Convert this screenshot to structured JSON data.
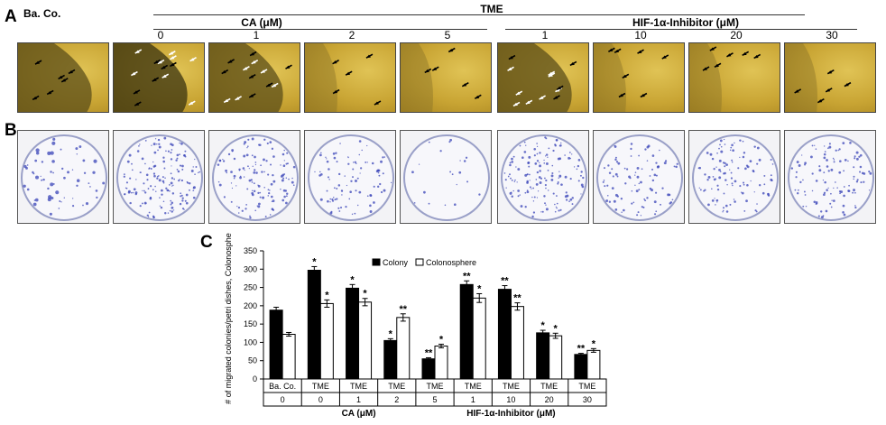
{
  "panel_labels": {
    "a": "A",
    "b": "B",
    "c": "C"
  },
  "header": {
    "control": "Ba. Co.",
    "tme": "TME",
    "ca": "CA (μM)",
    "hif": "HIF-1α-Inhibitor (μM)",
    "ca_doses": [
      "0",
      "1",
      "2",
      "5"
    ],
    "hif_doses": [
      "1",
      "10",
      "20",
      "30"
    ]
  },
  "chart_data": {
    "type": "bar",
    "ylabel": "# of migrated colonies/petri dishes, Colonosphere",
    "ylim": [
      0,
      350
    ],
    "yticks": [
      "0",
      "50",
      "100",
      "150",
      "200",
      "250",
      "300",
      "350"
    ],
    "legend_position": "top",
    "groups": [
      "Ba. Co.",
      "TME",
      "TME",
      "TME",
      "TME",
      "TME",
      "TME",
      "TME",
      "TME"
    ],
    "doses": [
      "0",
      "0",
      "1",
      "2",
      "5",
      "1",
      "10",
      "20",
      "30"
    ],
    "group_labels": [
      "CA (μM)",
      "HIF-1α-Inhibitor (μM)"
    ],
    "series": [
      {
        "name": "Colony",
        "color": "#000000",
        "values": [
          188,
          297,
          248,
          105,
          55,
          258,
          245,
          126,
          67
        ],
        "errors": [
          8,
          10,
          10,
          5,
          3,
          10,
          10,
          7,
          3
        ],
        "sig": [
          "",
          "*",
          "*",
          "*",
          "**",
          "**",
          "**",
          "*",
          "**"
        ]
      },
      {
        "name": "Colonosphere",
        "color": "#ffffff",
        "values": [
          122,
          206,
          210,
          168,
          90,
          221,
          198,
          118,
          78
        ],
        "errors": [
          5,
          10,
          10,
          10,
          5,
          12,
          10,
          7,
          5
        ],
        "sig": [
          "",
          "*",
          "*",
          "**",
          "*",
          "*",
          "**",
          "*",
          "*"
        ]
      }
    ]
  }
}
